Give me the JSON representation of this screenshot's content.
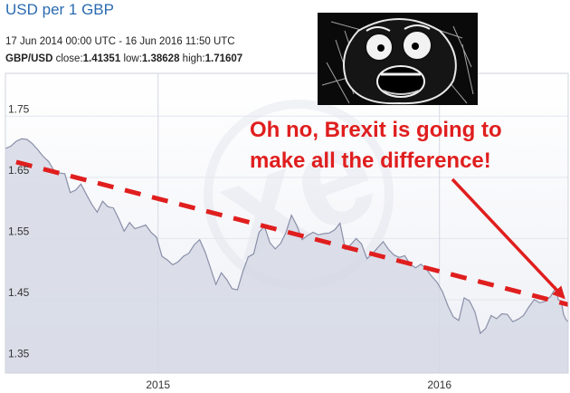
{
  "header": {
    "title": "USD per 1 GBP",
    "date_range": "17 Jun 2014 00:00 UTC - 16 Jun 2016 11:50 UTC",
    "pair": "GBP/USD",
    "close_label": "close:",
    "close_value": "1.41351",
    "low_label": "low:",
    "low_value": "1.38628",
    "high_label": "high:",
    "high_value": "1.71607"
  },
  "meme": {
    "icon": "shocked-face-meme-icon"
  },
  "chart_data": {
    "type": "area",
    "title": "",
    "xlabel": "",
    "ylabel": "",
    "x_range": [
      "2014-06-17",
      "2016-06-16"
    ],
    "ylim": [
      1.33,
      1.82
    ],
    "yticks": [
      1.35,
      1.45,
      1.55,
      1.65,
      1.75
    ],
    "ytick_labels": [
      "1.35",
      "1.45",
      "1.55",
      "1.65",
      "1.75"
    ],
    "xticks": [
      "2015-01-01",
      "2016-01-01"
    ],
    "xtick_labels": [
      "2015",
      "2016"
    ],
    "grid": true,
    "colors": {
      "line": "#8a8fa8",
      "fill": "#d6d9e5",
      "trend": "#e01e1e",
      "annotation": "#e01e1e"
    },
    "series": [
      {
        "values": [
          [
            "2014-06-17",
            1.697
          ],
          [
            "2014-06-24",
            1.701
          ],
          [
            "2014-07-01",
            1.709
          ],
          [
            "2014-07-08",
            1.713
          ],
          [
            "2014-07-15",
            1.712
          ],
          [
            "2014-07-22",
            1.705
          ],
          [
            "2014-07-29",
            1.695
          ],
          [
            "2014-08-05",
            1.684
          ],
          [
            "2014-08-12",
            1.676
          ],
          [
            "2014-08-19",
            1.661
          ],
          [
            "2014-08-26",
            1.657
          ],
          [
            "2014-09-02",
            1.656
          ],
          [
            "2014-09-09",
            1.625
          ],
          [
            "2014-09-16",
            1.629
          ],
          [
            "2014-09-23",
            1.639
          ],
          [
            "2014-09-30",
            1.622
          ],
          [
            "2014-10-07",
            1.606
          ],
          [
            "2014-10-14",
            1.593
          ],
          [
            "2014-10-21",
            1.611
          ],
          [
            "2014-10-28",
            1.602
          ],
          [
            "2014-11-04",
            1.6
          ],
          [
            "2014-11-11",
            1.582
          ],
          [
            "2014-11-18",
            1.562
          ],
          [
            "2014-11-25",
            1.576
          ],
          [
            "2014-12-02",
            1.566
          ],
          [
            "2014-12-09",
            1.569
          ],
          [
            "2014-12-16",
            1.572
          ],
          [
            "2014-12-23",
            1.56
          ],
          [
            "2014-12-30",
            1.552
          ],
          [
            "2015-01-06",
            1.521
          ],
          [
            "2015-01-13",
            1.515
          ],
          [
            "2015-01-20",
            1.507
          ],
          [
            "2015-01-27",
            1.512
          ],
          [
            "2015-02-03",
            1.521
          ],
          [
            "2015-02-10",
            1.526
          ],
          [
            "2015-02-17",
            1.54
          ],
          [
            "2015-02-24",
            1.548
          ],
          [
            "2015-03-03",
            1.528
          ],
          [
            "2015-03-10",
            1.502
          ],
          [
            "2015-03-17",
            1.475
          ],
          [
            "2015-03-24",
            1.494
          ],
          [
            "2015-03-31",
            1.483
          ],
          [
            "2015-04-07",
            1.468
          ],
          [
            "2015-04-14",
            1.466
          ],
          [
            "2015-04-21",
            1.496
          ],
          [
            "2015-04-28",
            1.52
          ],
          [
            "2015-05-05",
            1.525
          ],
          [
            "2015-05-12",
            1.56
          ],
          [
            "2015-05-19",
            1.57
          ],
          [
            "2015-05-26",
            1.543
          ],
          [
            "2015-06-02",
            1.533
          ],
          [
            "2015-06-09",
            1.542
          ],
          [
            "2015-06-16",
            1.56
          ],
          [
            "2015-06-23",
            1.588
          ],
          [
            "2015-06-30",
            1.571
          ],
          [
            "2015-07-07",
            1.548
          ],
          [
            "2015-07-14",
            1.555
          ],
          [
            "2015-07-21",
            1.56
          ],
          [
            "2015-07-28",
            1.556
          ],
          [
            "2015-08-04",
            1.558
          ],
          [
            "2015-08-11",
            1.559
          ],
          [
            "2015-08-18",
            1.564
          ],
          [
            "2015-08-25",
            1.575
          ],
          [
            "2015-09-01",
            1.532
          ],
          [
            "2015-09-08",
            1.54
          ],
          [
            "2015-09-15",
            1.55
          ],
          [
            "2015-09-22",
            1.541
          ],
          [
            "2015-09-29",
            1.517
          ],
          [
            "2015-10-06",
            1.525
          ],
          [
            "2015-10-13",
            1.535
          ],
          [
            "2015-10-20",
            1.545
          ],
          [
            "2015-10-27",
            1.532
          ],
          [
            "2015-11-03",
            1.523
          ],
          [
            "2015-11-10",
            1.519
          ],
          [
            "2015-11-17",
            1.522
          ],
          [
            "2015-11-24",
            1.508
          ],
          [
            "2015-12-01",
            1.502
          ],
          [
            "2015-12-08",
            1.508
          ],
          [
            "2015-12-15",
            1.5
          ],
          [
            "2015-12-22",
            1.488
          ],
          [
            "2015-12-29",
            1.478
          ],
          [
            "2016-01-05",
            1.463
          ],
          [
            "2016-01-12",
            1.44
          ],
          [
            "2016-01-19",
            1.422
          ],
          [
            "2016-01-26",
            1.416
          ],
          [
            "2016-02-02",
            1.453
          ],
          [
            "2016-02-09",
            1.448
          ],
          [
            "2016-02-16",
            1.43
          ],
          [
            "2016-02-23",
            1.395
          ],
          [
            "2016-03-01",
            1.403
          ],
          [
            "2016-03-08",
            1.424
          ],
          [
            "2016-03-15",
            1.419
          ],
          [
            "2016-03-22",
            1.427
          ],
          [
            "2016-03-29",
            1.426
          ],
          [
            "2016-04-05",
            1.414
          ],
          [
            "2016-04-12",
            1.418
          ],
          [
            "2016-04-19",
            1.424
          ],
          [
            "2016-04-26",
            1.438
          ],
          [
            "2016-05-03",
            1.45
          ],
          [
            "2016-05-10",
            1.445
          ],
          [
            "2016-05-17",
            1.447
          ],
          [
            "2016-05-24",
            1.455
          ],
          [
            "2016-05-31",
            1.47
          ],
          [
            "2016-06-03",
            1.45
          ],
          [
            "2016-06-07",
            1.447
          ],
          [
            "2016-06-10",
            1.426
          ],
          [
            "2016-06-13",
            1.418
          ],
          [
            "2016-06-16",
            1.4135
          ]
        ]
      }
    ],
    "trendline": {
      "x": [
        "2014-07-01",
        "2016-06-16"
      ],
      "y": [
        1.675,
        1.442
      ]
    },
    "annotation": {
      "lines": [
        "Oh no, Brexit is going to",
        "make all the difference!"
      ],
      "arrow_to": [
        "2016-06-10",
        1.445
      ]
    }
  }
}
